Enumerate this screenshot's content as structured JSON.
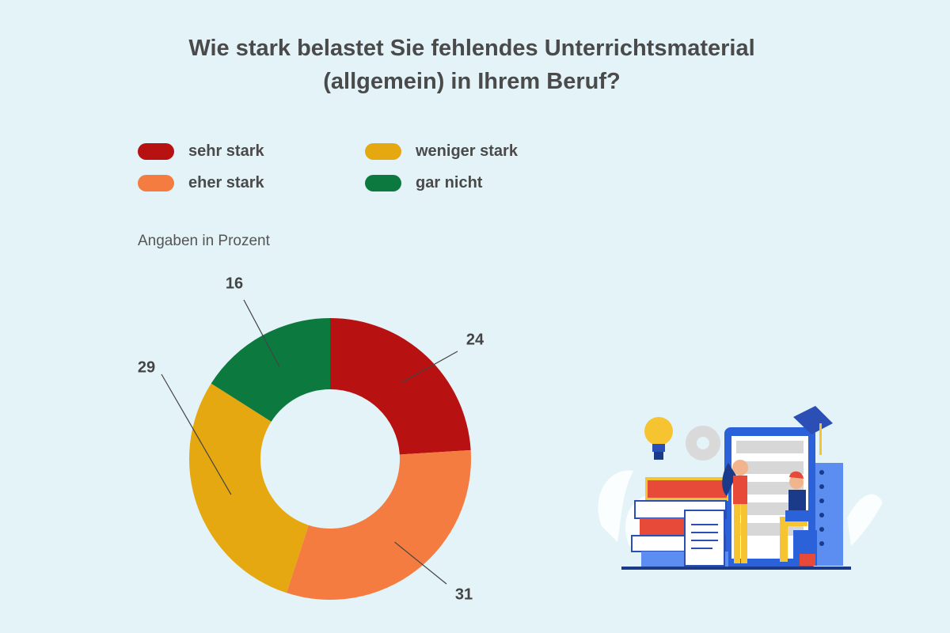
{
  "title_line1": "Wie stark belastet Sie fehlendes Unterrichtsmaterial",
  "title_line2": "(allgemein) in Ihrem Beruf?",
  "note": "Angaben in Prozent",
  "chart_data": {
    "type": "pie",
    "donut": true,
    "title": "Wie stark belastet Sie fehlendes Unterrichtsmaterial (allgemein) in Ihrem Beruf?",
    "unit": "Angaben in Prozent",
    "legend_position": "top",
    "categories": [
      "sehr stark",
      "eher stark",
      "weniger stark",
      "gar nicht"
    ],
    "values": [
      24,
      31,
      29,
      16
    ],
    "colors": [
      "#b81111",
      "#f47c41",
      "#e5a811",
      "#0c7a3e"
    ]
  },
  "illustration": "teacher-with-books-illustration"
}
